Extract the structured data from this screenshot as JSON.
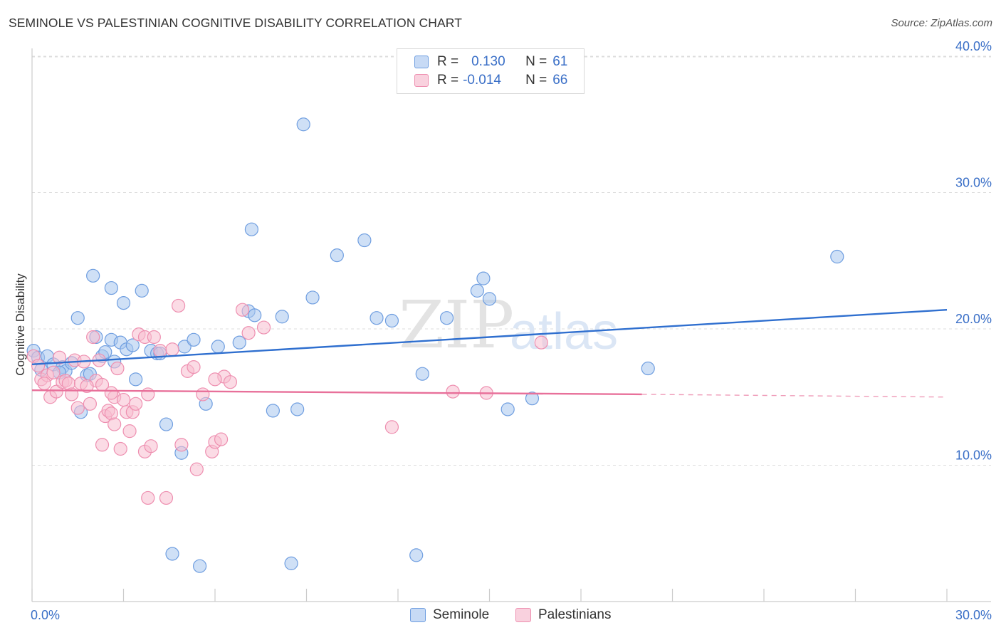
{
  "title": "SEMINOLE VS PALESTINIAN COGNITIVE DISABILITY CORRELATION CHART",
  "source": "Source: ZipAtlas.com",
  "watermark": {
    "zip": "ZIP",
    "atlas": "atlas"
  },
  "legend": {
    "rows": [
      {
        "r_label": "R =",
        "r_value": "0.130",
        "n_label": "N =",
        "n_value": "61",
        "color": "#a8c6ef",
        "border": "#6f9ee0"
      },
      {
        "r_label": "R =",
        "r_value": "-0.014",
        "n_label": "N =",
        "n_value": "66",
        "color": "#f7bdd0",
        "border": "#ee8fb0"
      }
    ]
  },
  "bottom_legend": [
    {
      "label": "Seminole",
      "color": "#a8c6ef",
      "border": "#6f9ee0"
    },
    {
      "label": "Palestinians",
      "color": "#f7bdd0",
      "border": "#ee8fb0"
    }
  ],
  "chart_data": {
    "type": "scatter",
    "title": "SEMINOLE VS PALESTINIAN COGNITIVE DISABILITY CORRELATION CHART",
    "xlabel": "",
    "ylabel": "Cognitive Disability",
    "xlim": [
      0,
      30
    ],
    "ylim": [
      0,
      40
    ],
    "x_tick_labels": [
      "0.0%",
      "30.0%"
    ],
    "y_ticks": [
      10,
      20,
      30,
      40
    ],
    "y_tick_labels": [
      "10.0%",
      "20.0%",
      "30.0%",
      "40.0%"
    ],
    "grid": true,
    "series": [
      {
        "name": "Seminole",
        "color": "#a8c6ef",
        "stroke": "#6f9ee0",
        "trend": {
          "x": [
            0,
            30
          ],
          "y": [
            17.4,
            21.4
          ],
          "color": "#2f6fcf"
        },
        "points": [
          [
            0.05,
            18.4
          ],
          [
            0.2,
            17.9
          ],
          [
            0.5,
            18.0
          ],
          [
            0.7,
            17.4
          ],
          [
            1.0,
            17.2
          ],
          [
            1.1,
            16.9
          ],
          [
            0.9,
            16.8
          ],
          [
            1.8,
            16.6
          ],
          [
            1.5,
            20.8
          ],
          [
            1.6,
            13.9
          ],
          [
            2.0,
            23.9
          ],
          [
            2.1,
            19.4
          ],
          [
            2.3,
            18.0
          ],
          [
            2.6,
            23.0
          ],
          [
            2.6,
            19.2
          ],
          [
            2.7,
            17.6
          ],
          [
            2.9,
            19.0
          ],
          [
            3.0,
            21.9
          ],
          [
            3.1,
            18.5
          ],
          [
            3.3,
            18.8
          ],
          [
            3.4,
            16.3
          ],
          [
            3.6,
            22.8
          ],
          [
            3.9,
            18.4
          ],
          [
            4.1,
            18.2
          ],
          [
            4.4,
            13.0
          ],
          [
            4.6,
            3.5
          ],
          [
            4.9,
            10.9
          ],
          [
            5.0,
            18.7
          ],
          [
            5.3,
            19.2
          ],
          [
            5.5,
            2.6
          ],
          [
            5.7,
            14.5
          ],
          [
            6.1,
            18.7
          ],
          [
            6.8,
            19.0
          ],
          [
            7.1,
            21.3
          ],
          [
            7.2,
            27.3
          ],
          [
            7.3,
            21.0
          ],
          [
            7.9,
            14.0
          ],
          [
            8.2,
            20.9
          ],
          [
            8.5,
            2.8
          ],
          [
            8.7,
            14.1
          ],
          [
            8.9,
            35.0
          ],
          [
            9.2,
            22.3
          ],
          [
            10.0,
            25.4
          ],
          [
            10.9,
            26.5
          ],
          [
            11.3,
            20.8
          ],
          [
            11.8,
            20.6
          ],
          [
            12.6,
            3.4
          ],
          [
            12.8,
            16.7
          ],
          [
            13.6,
            20.8
          ],
          [
            14.6,
            22.8
          ],
          [
            14.8,
            23.7
          ],
          [
            15.0,
            22.2
          ],
          [
            15.6,
            14.1
          ],
          [
            16.4,
            14.9
          ],
          [
            20.2,
            17.1
          ],
          [
            26.4,
            25.3
          ],
          [
            0.3,
            17.0
          ],
          [
            1.3,
            17.5
          ],
          [
            2.4,
            18.3
          ],
          [
            4.2,
            18.2
          ],
          [
            1.9,
            16.7
          ]
        ]
      },
      {
        "name": "Palestinians",
        "color": "#f7bdd0",
        "stroke": "#ee8fb0",
        "trend": {
          "x": [
            0,
            20
          ],
          "y": [
            15.5,
            15.2
          ],
          "dash_x": [
            20,
            30
          ],
          "dash_y": [
            15.2,
            15.0
          ],
          "color": "#e8709a"
        },
        "points": [
          [
            0.05,
            18.0
          ],
          [
            0.2,
            17.3
          ],
          [
            0.3,
            16.3
          ],
          [
            0.5,
            16.6
          ],
          [
            0.6,
            15.0
          ],
          [
            0.7,
            16.8
          ],
          [
            0.8,
            15.4
          ],
          [
            0.9,
            17.9
          ],
          [
            1.0,
            16.1
          ],
          [
            1.1,
            16.2
          ],
          [
            1.2,
            16.0
          ],
          [
            1.3,
            15.2
          ],
          [
            1.4,
            17.7
          ],
          [
            1.5,
            14.2
          ],
          [
            1.6,
            16.0
          ],
          [
            1.7,
            17.6
          ],
          [
            1.9,
            14.5
          ],
          [
            2.0,
            19.4
          ],
          [
            2.1,
            16.2
          ],
          [
            2.2,
            17.7
          ],
          [
            2.3,
            15.9
          ],
          [
            2.3,
            11.5
          ],
          [
            2.4,
            13.6
          ],
          [
            2.5,
            14.0
          ],
          [
            2.6,
            13.8
          ],
          [
            2.7,
            13.0
          ],
          [
            2.7,
            15.0
          ],
          [
            2.8,
            17.1
          ],
          [
            2.9,
            11.2
          ],
          [
            3.0,
            14.8
          ],
          [
            3.1,
            13.9
          ],
          [
            3.2,
            12.5
          ],
          [
            3.3,
            13.9
          ],
          [
            3.4,
            14.5
          ],
          [
            3.5,
            19.6
          ],
          [
            3.7,
            19.4
          ],
          [
            3.7,
            11.0
          ],
          [
            3.8,
            15.2
          ],
          [
            3.9,
            11.4
          ],
          [
            3.8,
            7.6
          ],
          [
            4.0,
            19.4
          ],
          [
            4.2,
            18.4
          ],
          [
            4.4,
            7.6
          ],
          [
            4.8,
            21.7
          ],
          [
            4.9,
            11.5
          ],
          [
            5.1,
            16.9
          ],
          [
            5.3,
            17.2
          ],
          [
            5.4,
            9.7
          ],
          [
            5.6,
            15.2
          ],
          [
            5.9,
            11.0
          ],
          [
            6.0,
            11.7
          ],
          [
            6.2,
            11.9
          ],
          [
            6.3,
            16.5
          ],
          [
            6.5,
            16.1
          ],
          [
            6.9,
            21.4
          ],
          [
            7.1,
            19.7
          ],
          [
            7.6,
            20.1
          ],
          [
            11.8,
            12.8
          ],
          [
            13.8,
            15.4
          ],
          [
            14.9,
            15.3
          ],
          [
            16.7,
            19.0
          ],
          [
            0.4,
            16.0
          ],
          [
            1.8,
            15.8
          ],
          [
            2.6,
            15.3
          ],
          [
            4.6,
            18.5
          ],
          [
            6.0,
            16.3
          ]
        ]
      }
    ]
  }
}
